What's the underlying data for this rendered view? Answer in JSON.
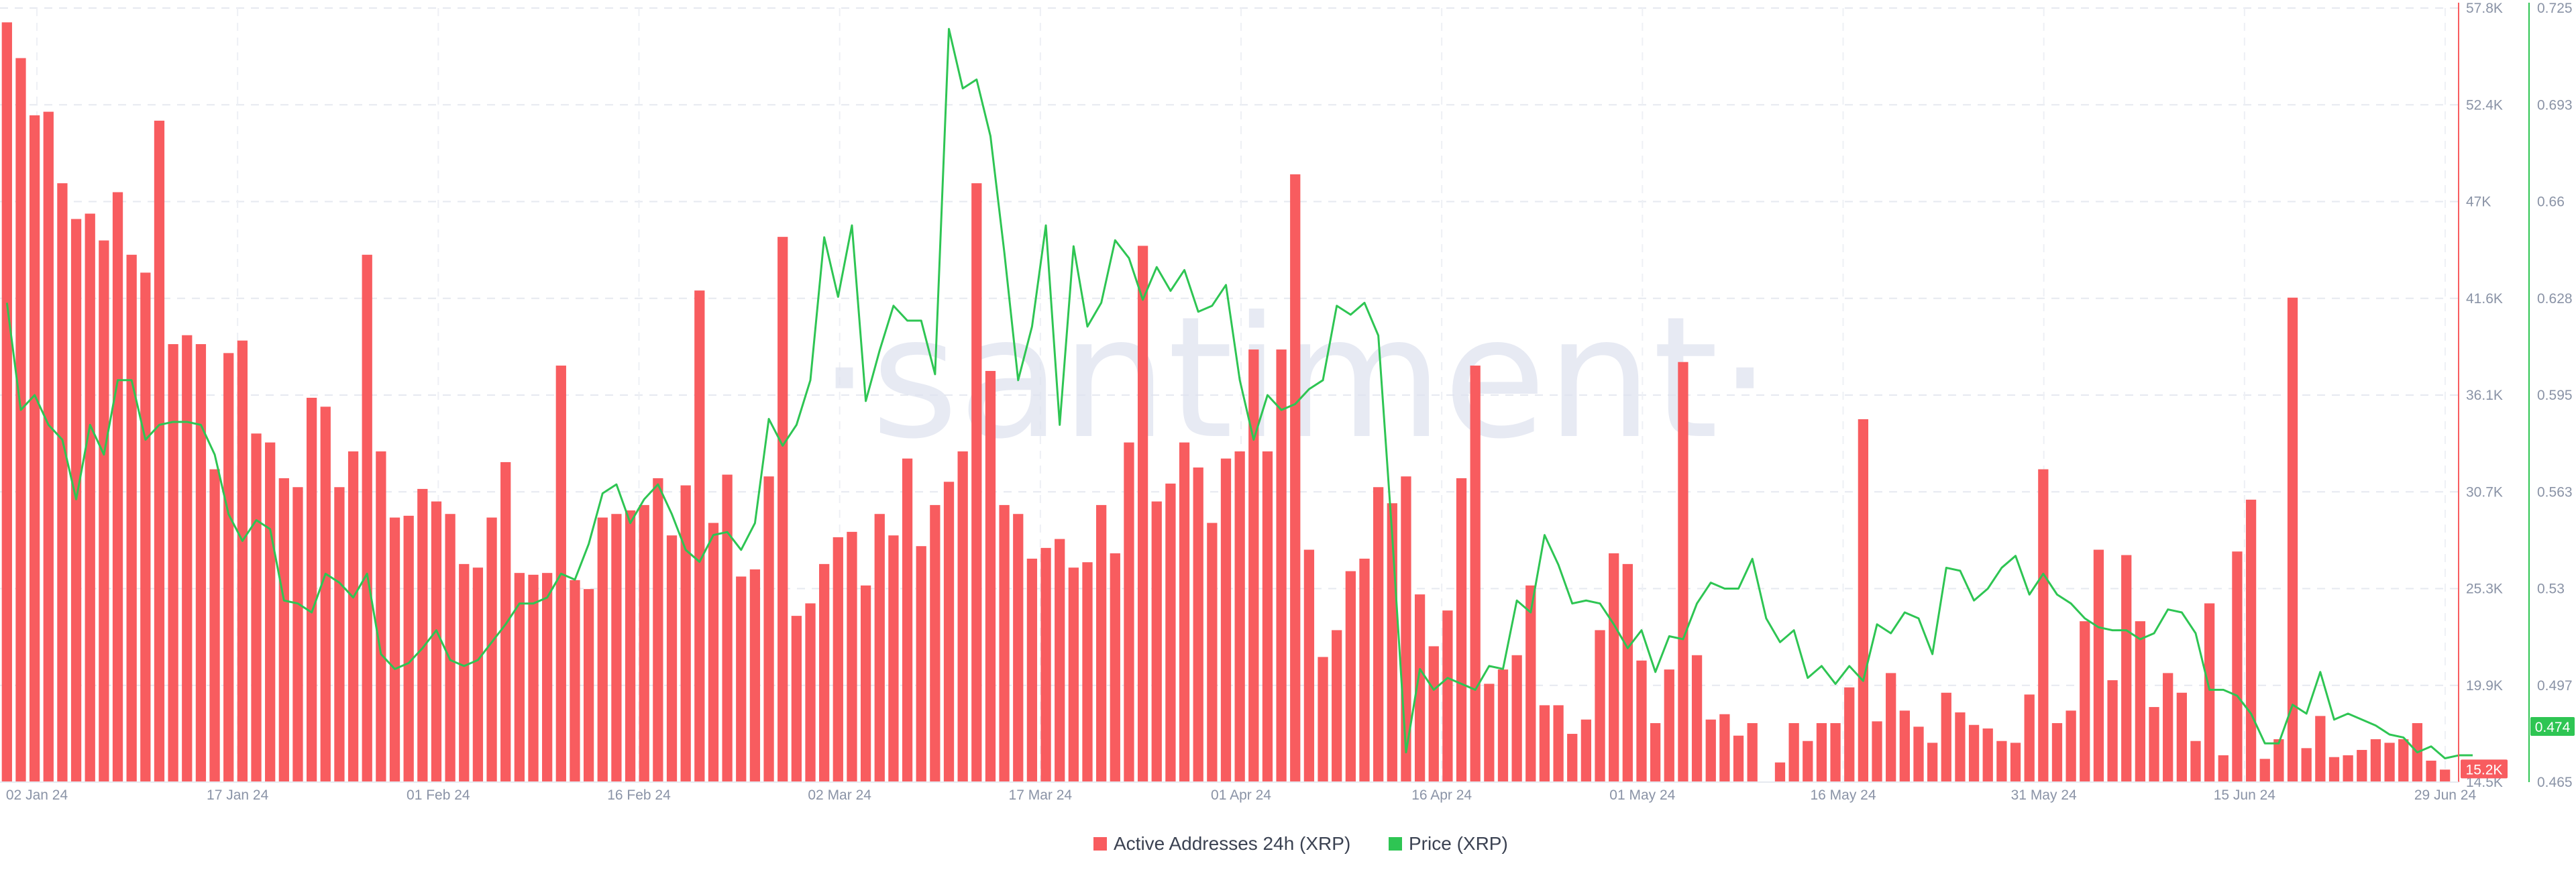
{
  "watermark": "·santiment·",
  "chart_data": {
    "type": "bar+line",
    "x_ticks": [
      "02 Jan 24",
      "17 Jan 24",
      "01 Feb 24",
      "16 Feb 24",
      "02 Mar 24",
      "17 Mar 24",
      "01 Apr 24",
      "16 Apr 24",
      "01 May 24",
      "16 May 24",
      "31 May 24",
      "15 Jun 24",
      "29 Jun 24"
    ],
    "y_left_ticks": [
      "14.5K",
      "19.9K",
      "25.3K",
      "30.7K",
      "36.1K",
      "41.6K",
      "47K",
      "52.4K",
      "57.8K"
    ],
    "y_right_ticks": [
      "0.465",
      "0.497",
      "0.53",
      "0.563",
      "0.595",
      "0.628",
      "0.66",
      "0.693",
      "0.725"
    ],
    "y_left_range": [
      14500,
      57800
    ],
    "y_right_range": [
      0.465,
      0.725
    ],
    "grid": true,
    "legend_position": "bottom-center",
    "series": [
      {
        "name": "Active Addresses 24h (XRP)",
        "color": "#f85c5f",
        "axis": "left",
        "type": "bar",
        "last_value_label": "15.2K",
        "values": [
          57000,
          55000,
          51800,
          52000,
          48000,
          46000,
          46300,
          44800,
          47500,
          44000,
          43000,
          51500,
          39000,
          39500,
          39000,
          32000,
          38500,
          39200,
          34000,
          33500,
          31500,
          31000,
          36000,
          35500,
          31000,
          33000,
          44000,
          33000,
          29300,
          29400,
          30900,
          30200,
          29500,
          26700,
          26500,
          29300,
          32400,
          26200,
          26100,
          26200,
          37800,
          25800,
          25300,
          29300,
          29500,
          29700,
          30000,
          31500,
          28300,
          31100,
          42000,
          29000,
          31700,
          26000,
          26400,
          31600,
          45000,
          23800,
          24500,
          26700,
          28200,
          28500,
          25500,
          29500,
          28300,
          32600,
          27700,
          30000,
          31300,
          33000,
          48000,
          37500,
          30000,
          29500,
          27000,
          27600,
          28100,
          26500,
          26800,
          30000,
          27300,
          33500,
          44500,
          30200,
          31200,
          33500,
          32100,
          29000,
          32600,
          33000,
          38700,
          33000,
          38700,
          48500,
          27500,
          21500,
          23000,
          26300,
          27000,
          31000,
          30100,
          31600,
          25000,
          22100,
          24100,
          31500,
          37800,
          20000,
          20800,
          21600,
          25500,
          18800,
          18800,
          17200,
          18000,
          23000,
          27300,
          26700,
          21300,
          17800,
          20800,
          38000,
          21600,
          18000,
          18300,
          17100,
          17800,
          14500,
          15600,
          17800,
          16800,
          17800,
          17800,
          19800,
          34800,
          17900,
          20600,
          18500,
          17600,
          16700,
          19500,
          18400,
          17700,
          17500,
          16800,
          16700,
          19400,
          32000,
          17800,
          18500,
          23500,
          27500,
          20200,
          27200,
          23500,
          18700,
          20600,
          19500,
          16800,
          24500,
          16000,
          27400,
          30300,
          15800,
          16900,
          41600,
          16400,
          18200,
          15900,
          16000,
          16300,
          16900,
          16700,
          16900,
          17800,
          15700,
          15200
        ]
      },
      {
        "name": "Price (XRP)",
        "color": "#2ec553",
        "axis": "right",
        "type": "line",
        "last_value_label": "0.474",
        "values": [
          0.626,
          0.59,
          0.595,
          0.585,
          0.58,
          0.56,
          0.585,
          0.575,
          0.6,
          0.6,
          0.58,
          0.585,
          0.586,
          0.586,
          0.585,
          0.575,
          0.555,
          0.546,
          0.553,
          0.55,
          0.526,
          0.525,
          0.522,
          0.535,
          0.532,
          0.527,
          0.535,
          0.508,
          0.503,
          0.505,
          0.51,
          0.516,
          0.506,
          0.504,
          0.506,
          0.512,
          0.518,
          0.525,
          0.525,
          0.527,
          0.535,
          0.533,
          0.545,
          0.562,
          0.565,
          0.552,
          0.56,
          0.565,
          0.555,
          0.543,
          0.539,
          0.548,
          0.549,
          0.543,
          0.552,
          0.587,
          0.578,
          0.585,
          0.6,
          0.648,
          0.628,
          0.652,
          0.593,
          0.61,
          0.625,
          0.62,
          0.62,
          0.602,
          0.718,
          0.698,
          0.701,
          0.682,
          0.643,
          0.6,
          0.618,
          0.652,
          0.585,
          0.645,
          0.618,
          0.626,
          0.647,
          0.641,
          0.627,
          0.638,
          0.63,
          0.637,
          0.623,
          0.625,
          0.632,
          0.6,
          0.58,
          0.595,
          0.59,
          0.592,
          0.597,
          0.6,
          0.625,
          0.622,
          0.626,
          0.615,
          0.548,
          0.475,
          0.503,
          0.496,
          0.5,
          0.498,
          0.496,
          0.504,
          0.503,
          0.526,
          0.522,
          0.548,
          0.538,
          0.525,
          0.526,
          0.525,
          0.518,
          0.51,
          0.516,
          0.502,
          0.514,
          0.513,
          0.525,
          0.532,
          0.53,
          0.53,
          0.54,
          0.52,
          0.512,
          0.516,
          0.5,
          0.504,
          0.498,
          0.504,
          0.499,
          0.518,
          0.515,
          0.522,
          0.52,
          0.508,
          0.537,
          0.536,
          0.526,
          0.53,
          0.537,
          0.541,
          0.528,
          0.535,
          0.528,
          0.525,
          0.52,
          0.517,
          0.516,
          0.516,
          0.513,
          0.515,
          0.523,
          0.522,
          0.515,
          0.496,
          0.496,
          0.494,
          0.488,
          0.478,
          0.478,
          0.491,
          0.488,
          0.502,
          0.486,
          0.488,
          0.486,
          0.484,
          0.481,
          0.48,
          0.475,
          0.477,
          0.473,
          0.474,
          0.474
        ]
      }
    ]
  }
}
